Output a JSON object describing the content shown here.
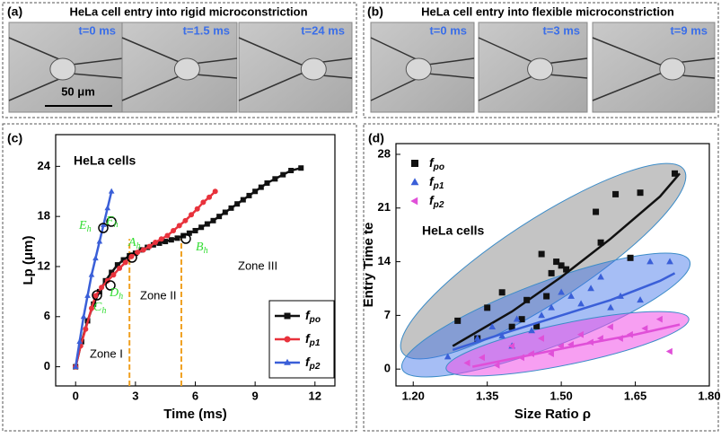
{
  "panels": {
    "a": {
      "label": "(a)",
      "title": "HeLa cell entry into rigid microconstriction",
      "frames": [
        "t=0 ms",
        "t=1.5 ms",
        "t=24 ms"
      ],
      "scale_bar": "50 μm"
    },
    "b": {
      "label": "(b)",
      "title": "HeLa cell entry into flexible microconstriction",
      "frames": [
        "t=0 ms",
        "t=3 ms",
        "t=9 ms"
      ]
    },
    "c": {
      "label": "(c)"
    },
    "d": {
      "label": "(d)"
    }
  },
  "chart_data": [
    {
      "type": "line",
      "xlabel": "Time (ms)",
      "ylabel": "Lp (μm)",
      "xlim": [
        -1,
        13
      ],
      "ylim": [
        -2.3,
        27.8
      ],
      "xticks": [
        0,
        3,
        6,
        9,
        12
      ],
      "yticks": [
        0,
        6,
        12,
        18,
        24
      ],
      "legend": "lower right",
      "annotations": [
        "HeLa cells",
        "Zone I",
        "Zone II",
        "Zone III"
      ],
      "point_labels": [
        "Eh",
        "Fh",
        "Ah",
        "Bh",
        "Ch",
        "Dh"
      ],
      "vlines": [
        2.7,
        5.3
      ],
      "vline_color": "#f0a020",
      "series": [
        {
          "name": "fpo",
          "color": "#111111",
          "marker": "square",
          "x": [
            0,
            0.3,
            0.6,
            0.9,
            1.2,
            1.5,
            1.8,
            2.1,
            2.4,
            2.7,
            3.0,
            3.3,
            3.6,
            3.9,
            4.2,
            4.5,
            4.8,
            5.1,
            5.4,
            5.7,
            6.0,
            6.3,
            6.6,
            6.9,
            7.2,
            7.5,
            7.8,
            8.1,
            8.4,
            8.7,
            9.0,
            9.3,
            9.6,
            10.0,
            10.4,
            10.8,
            11.3
          ],
          "values": [
            0,
            3,
            5.5,
            7.5,
            9,
            10.3,
            11.3,
            12.2,
            12.8,
            13.3,
            13.6,
            14,
            14.3,
            14.6,
            14.8,
            15,
            15.2,
            15.4,
            15.7,
            16,
            16.3,
            16.7,
            17.1,
            17.5,
            18,
            18.5,
            19,
            19.5,
            20,
            20.5,
            21,
            21.5,
            22,
            22.5,
            23,
            23.5,
            23.8
          ]
        },
        {
          "name": "fp1",
          "color": "#e8323c",
          "marker": "circle",
          "x": [
            0,
            0.25,
            0.5,
            0.8,
            1.0,
            1.3,
            1.6,
            1.9,
            2.2,
            2.5,
            2.8,
            3.1,
            3.4,
            3.7,
            4.0,
            4.3,
            4.6,
            4.9,
            5.2,
            5.5,
            5.8,
            6.1,
            6.4,
            6.7,
            7.0
          ],
          "values": [
            0,
            2.5,
            4.5,
            7,
            8.5,
            9.5,
            10.3,
            11,
            11.8,
            12.5,
            13.2,
            13.7,
            14,
            14.4,
            14.9,
            15.3,
            15.7,
            16.3,
            16.9,
            17.5,
            18.2,
            18.9,
            19.7,
            20.3,
            21
          ]
        },
        {
          "name": "fp2",
          "color": "#3a5fd8",
          "marker": "triangle",
          "x": [
            0,
            0.2,
            0.4,
            0.6,
            0.8,
            1.0,
            1.2,
            1.4,
            1.6,
            1.8
          ],
          "values": [
            0,
            3,
            6,
            8.5,
            11,
            13,
            15,
            17,
            19,
            21
          ]
        }
      ]
    },
    {
      "type": "scatter",
      "xlabel": "Size Ratio ρ",
      "ylabel": "Entry Time te",
      "xlim": [
        1.165,
        1.8
      ],
      "ylim": [
        -2.2,
        29.4
      ],
      "xticks": [
        {
          "value": 1.2,
          "label": "1.20"
        },
        {
          "value": 1.35,
          "label": "1.35"
        },
        {
          "value": 1.5,
          "label": "1.50"
        },
        {
          "value": 1.65,
          "label": "1.65"
        },
        {
          "value": 1.8,
          "label": "1.80"
        }
      ],
      "yticks": [
        0,
        7,
        14,
        21,
        28
      ],
      "legend": "upper left",
      "annotations": [
        "HeLa cells"
      ],
      "series": [
        {
          "name": "fpo",
          "color": "#111111",
          "marker": "square",
          "x": [
            1.29,
            1.33,
            1.35,
            1.38,
            1.4,
            1.42,
            1.43,
            1.45,
            1.46,
            1.47,
            1.48,
            1.49,
            1.5,
            1.51,
            1.57,
            1.58,
            1.61,
            1.64,
            1.66,
            1.73
          ],
          "values": [
            6.3,
            4,
            8,
            10,
            5.5,
            6.5,
            9,
            5.6,
            15,
            9.5,
            12.5,
            14,
            13.5,
            13,
            20.5,
            16.5,
            22.8,
            14.5,
            23,
            25.5
          ],
          "fit": {
            "x": [
              1.28,
              1.4,
              1.5,
              1.6,
              1.7,
              1.74
            ],
            "values": [
              3,
              7.5,
              12,
              17,
              22.5,
              25.5
            ]
          }
        },
        {
          "name": "fp1",
          "color": "#3a5fd8",
          "marker": "triangle",
          "x": [
            1.27,
            1.33,
            1.36,
            1.38,
            1.4,
            1.41,
            1.44,
            1.46,
            1.48,
            1.5,
            1.52,
            1.54,
            1.56,
            1.58,
            1.6,
            1.62,
            1.66,
            1.68,
            1.72
          ],
          "values": [
            1.6,
            4,
            5.5,
            4.3,
            3,
            6.5,
            5,
            7,
            8,
            10,
            9.5,
            8.5,
            10.5,
            12,
            8,
            9.5,
            9,
            14,
            14
          ],
          "fit": {
            "x": [
              1.28,
              1.4,
              1.5,
              1.6,
              1.7,
              1.73
            ],
            "values": [
              2.5,
              5,
              7,
              9,
              11.5,
              12.5
            ]
          }
        },
        {
          "name": "fp2",
          "color": "#e04fd8",
          "marker": "left-triangle",
          "x": [
            1.31,
            1.34,
            1.37,
            1.4,
            1.42,
            1.44,
            1.46,
            1.48,
            1.5,
            1.52,
            1.54,
            1.56,
            1.58,
            1.6,
            1.62,
            1.64,
            1.67,
            1.7,
            1.72
          ],
          "values": [
            0.8,
            1.5,
            0.5,
            3,
            1.5,
            2,
            4,
            2,
            3,
            3.2,
            4.5,
            3.5,
            4,
            5.5,
            4,
            4.5,
            5.3,
            6.5,
            2.3
          ],
          "fit": {
            "x": [
              1.32,
              1.45,
              1.55,
              1.65,
              1.74
            ],
            "values": [
              0.3,
              2,
              3.3,
              4.5,
              5.8
            ]
          }
        }
      ]
    }
  ]
}
